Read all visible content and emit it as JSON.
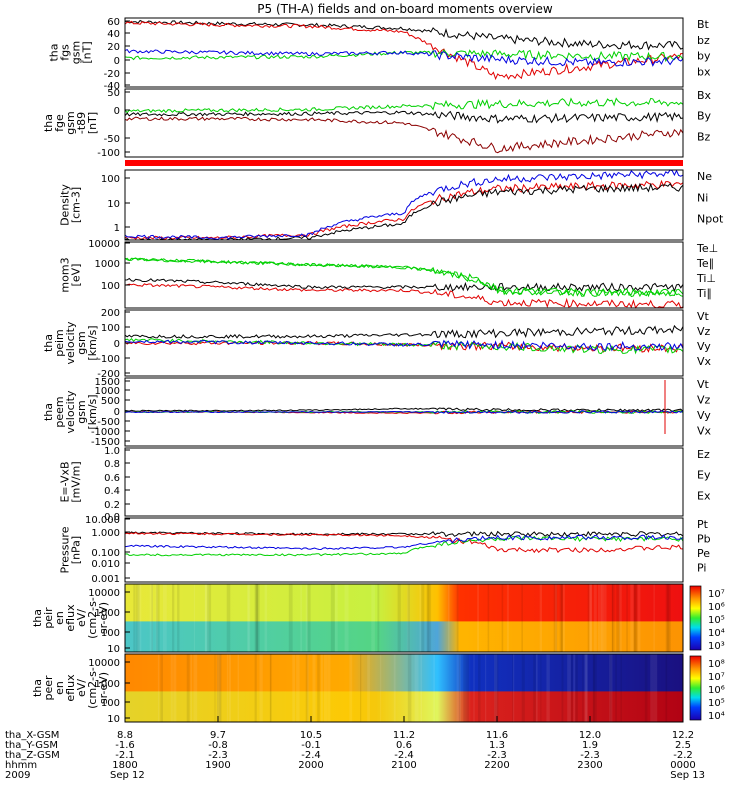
{
  "title": "P5 (TH-A) fields and on-board moments overview",
  "colors": {
    "black": "#000000",
    "red": "#e00000",
    "green": "#00d000",
    "blue": "#0000e0",
    "darkred": "#8b0000"
  },
  "panels": [
    {
      "ylabel": [
        "tha",
        "fgs",
        "gsm",
        "[nT]"
      ],
      "ticks": [
        "60",
        "40",
        "20",
        "0",
        "-20",
        "-40"
      ],
      "legend": [
        {
          "text": "Bt",
          "color": "black"
        },
        {
          "text": "bz",
          "color": "red"
        },
        {
          "text": "by",
          "color": "green"
        },
        {
          "text": "bx",
          "color": "blue"
        }
      ]
    },
    {
      "ylabel": [
        "tha",
        "fge",
        "gsm",
        "-t89",
        "[nT]"
      ],
      "ticks": [
        "50",
        "0",
        "-50",
        "-100"
      ],
      "legend": [
        {
          "text": "Bx",
          "color": "green"
        },
        {
          "text": "By",
          "color": "black"
        },
        {
          "text": "Bz",
          "color": "darkred"
        }
      ]
    },
    {
      "ylabel": [
        "Density",
        "[cm-3]"
      ],
      "ticks": [
        "100",
        "10",
        "1"
      ],
      "legend": [
        {
          "text": "Ne",
          "color": "red"
        },
        {
          "text": "Ni",
          "color": "black"
        },
        {
          "text": "Npot",
          "color": "blue"
        }
      ]
    },
    {
      "ylabel": [
        "mom3",
        "[eV]"
      ],
      "ticks": [
        "10000",
        "1000",
        "100"
      ],
      "legend": [
        {
          "text": "Te⊥",
          "color": "red"
        },
        {
          "text": "Te∥",
          "color": "black"
        },
        {
          "text": "Ti⊥",
          "color": "green"
        },
        {
          "text": "Ti∥",
          "color": "green"
        }
      ]
    },
    {
      "ylabel": [
        "tha",
        "peim",
        "velocity",
        "gsm",
        "[km/s]"
      ],
      "ticks": [
        "200",
        "100",
        "0",
        "-100",
        "-200"
      ],
      "legend": [
        {
          "text": "Vt",
          "color": "black"
        },
        {
          "text": "Vz",
          "color": "red"
        },
        {
          "text": "Vy",
          "color": "green"
        },
        {
          "text": "Vx",
          "color": "blue"
        }
      ]
    },
    {
      "ylabel": [
        "tha",
        "peem",
        "velocity",
        "gsm",
        "[km/s]"
      ],
      "ticks": [
        "1500",
        "1000",
        "500",
        "0",
        "-500",
        "-1000",
        "-1500"
      ],
      "legend": [
        {
          "text": "Vt",
          "color": "black"
        },
        {
          "text": "Vz",
          "color": "red"
        },
        {
          "text": "Vy",
          "color": "green"
        },
        {
          "text": "Vx",
          "color": "blue"
        }
      ]
    },
    {
      "ylabel": [
        "E=-VxB",
        "[mV/m]"
      ],
      "ticks": [
        "1.0",
        "0.8",
        "0.6",
        "0.4",
        "0.2",
        "0.0"
      ],
      "legend": [
        {
          "text": "Ez",
          "color": "red"
        },
        {
          "text": "Ey",
          "color": "green"
        },
        {
          "text": "Ex",
          "color": "blue"
        }
      ]
    },
    {
      "ylabel": [
        "Pressure",
        "[nPa]"
      ],
      "ticks": [
        "10.000",
        "1.000",
        "0.100",
        "0.010",
        "0.001"
      ],
      "legend": [
        {
          "text": "Pt",
          "color": "black"
        },
        {
          "text": "Pb",
          "color": "red"
        },
        {
          "text": "Pe",
          "color": "green"
        },
        {
          "text": "Pi",
          "color": "blue"
        }
      ]
    },
    {
      "ylabel": [
        "tha",
        "peir",
        "en",
        "eflux",
        "eV/",
        "(cm2-s-",
        "sr-eV)"
      ],
      "ticks": [
        "10000",
        "1000",
        "100",
        "10"
      ],
      "colorbar": [
        "10⁷",
        "10⁶",
        "10⁵",
        "10⁴",
        "10³"
      ]
    },
    {
      "ylabel": [
        "tha",
        "peer",
        "en",
        "eflux",
        "eV/",
        "(cm2-s-",
        "sr-eV)"
      ],
      "ticks": [
        "10000",
        "1000",
        "100",
        "10"
      ],
      "colorbar": [
        "10⁸",
        "10⁷",
        "10⁶",
        "10⁵",
        "10⁴"
      ]
    }
  ],
  "xaxis": {
    "row_labels": [
      "tha_X-GSM",
      "tha_Y-GSM",
      "tha_Z-GSM",
      "hhmm",
      "2009"
    ],
    "columns": [
      [
        "8.8",
        "-1.6",
        "-2.1",
        "1800",
        "Sep 12"
      ],
      [
        "9.7",
        "-0.8",
        "-2.3",
        "1900",
        ""
      ],
      [
        "10.5",
        "-0.1",
        "-2.4",
        "2000",
        ""
      ],
      [
        "11.2",
        "0.6",
        "-2.4",
        "2100",
        ""
      ],
      [
        "11.6",
        "1.3",
        "-2.3",
        "2200",
        ""
      ],
      [
        "12.0",
        "1.9",
        "-2.3",
        "2300",
        ""
      ],
      [
        "12.2",
        "2.5",
        "-2.2",
        "0000",
        "Sep 13"
      ]
    ]
  },
  "chart_data": {
    "type": "line",
    "title": "P5 (TH-A) fields and on-board moments overview",
    "x_ticks": [
      "1800",
      "1900",
      "2000",
      "2100",
      "2200",
      "2300",
      "0000"
    ],
    "panels": [
      {
        "name": "tha fgs gsm [nT]",
        "ylim": [
          -40,
          60
        ],
        "series": [
          {
            "name": "Bt",
            "values": [
              55,
              52,
              50,
              45,
              30,
              22,
              20
            ]
          },
          {
            "name": "bz",
            "values": [
              53,
              50,
              48,
              40,
              -25,
              -10,
              5
            ]
          },
          {
            "name": "by",
            "values": [
              2,
              3,
              4,
              10,
              8,
              5,
              4
            ]
          },
          {
            "name": "bx",
            "values": [
              12,
              10,
              8,
              10,
              0,
              -5,
              -2
            ]
          }
        ]
      },
      {
        "name": "tha fge gsm -t89 [nT]",
        "ylim": [
          -110,
          50
        ],
        "series": [
          {
            "name": "Bx",
            "values": [
              -2,
              0,
              2,
              10,
              15,
              18,
              18
            ]
          },
          {
            "name": "By",
            "values": [
              -10,
              -9,
              -8,
              -5,
              -20,
              -18,
              -15
            ]
          },
          {
            "name": "Bz",
            "values": [
              -20,
              -20,
              -22,
              -30,
              -90,
              -70,
              -50
            ]
          }
        ]
      },
      {
        "name": "Density [cm-3]",
        "ylim": [
          0.5,
          200
        ],
        "log": true,
        "series": [
          {
            "name": "Ne",
            "values": [
              0.6,
              0.6,
              0.8,
              3,
              40,
              50,
              60
            ]
          },
          {
            "name": "Ni",
            "values": [
              0.5,
              0.5,
              0.6,
              2,
              30,
              40,
              45
            ]
          },
          {
            "name": "Npot",
            "values": [
              0.7,
              0.6,
              0.8,
              5,
              90,
              120,
              150
            ]
          }
        ]
      },
      {
        "name": "mom3 [eV]",
        "ylim": [
          30,
          12000
        ],
        "log": true,
        "series": [
          {
            "name": "Te⊥",
            "values": [
              250,
              200,
              150,
              150,
              50,
              45,
              40
            ]
          },
          {
            "name": "Te∥",
            "values": [
              400,
              300,
              200,
              200,
              200,
              200,
              200
            ]
          },
          {
            "name": "Ti⊥",
            "values": [
              2500,
              2000,
              1500,
              1200,
              150,
              120,
              120
            ]
          },
          {
            "name": "Ti∥",
            "values": [
              2500,
              2000,
              1500,
              1200,
              150,
              120,
              120
            ]
          }
        ]
      },
      {
        "name": "tha peim velocity gsm [km/s]",
        "ylim": [
          -200,
          200
        ],
        "series": [
          {
            "name": "Vt",
            "values": [
              40,
              40,
              40,
              50,
              60,
              70,
              80
            ]
          },
          {
            "name": "Vz",
            "values": [
              0,
              0,
              0,
              -10,
              -20,
              -30,
              -30
            ]
          },
          {
            "name": "Vy",
            "values": [
              20,
              10,
              0,
              -10,
              -20,
              -40,
              -40
            ]
          },
          {
            "name": "Vx",
            "values": [
              10,
              5,
              0,
              -10,
              -10,
              -20,
              -20
            ]
          }
        ]
      },
      {
        "name": "tha peem velocity gsm [km/s]",
        "ylim": [
          -1500,
          1500
        ],
        "series": [
          {
            "name": "Vt",
            "values": [
              50,
              60,
              80,
              150,
              100,
              80,
              80
            ]
          },
          {
            "name": "Vz",
            "values": [
              0,
              0,
              -20,
              -50,
              0,
              0,
              0
            ]
          },
          {
            "name": "Vy",
            "values": [
              0,
              0,
              0,
              0,
              0,
              0,
              0
            ]
          },
          {
            "name": "Vx",
            "values": [
              0,
              0,
              0,
              0,
              0,
              0,
              0
            ]
          }
        ]
      },
      {
        "name": "E=-VxB [mV/m]",
        "ylim": [
          0,
          1
        ],
        "series": []
      },
      {
        "name": "Pressure [nPa]",
        "ylim": [
          0.001,
          10
        ],
        "log": true,
        "series": [
          {
            "name": "Pt",
            "values": [
              1.2,
              1.1,
              1.0,
              1.0,
              1.0,
              1.0,
              1.0
            ]
          },
          {
            "name": "Pb",
            "values": [
              1.1,
              1.0,
              0.9,
              0.8,
              0.1,
              0.1,
              0.15
            ]
          },
          {
            "name": "Pe",
            "values": [
              0.05,
              0.05,
              0.05,
              0.06,
              0.5,
              0.5,
              0.5
            ]
          },
          {
            "name": "Pi",
            "values": [
              0.18,
              0.15,
              0.12,
              0.15,
              0.6,
              0.6,
              0.6
            ]
          }
        ]
      }
    ]
  }
}
